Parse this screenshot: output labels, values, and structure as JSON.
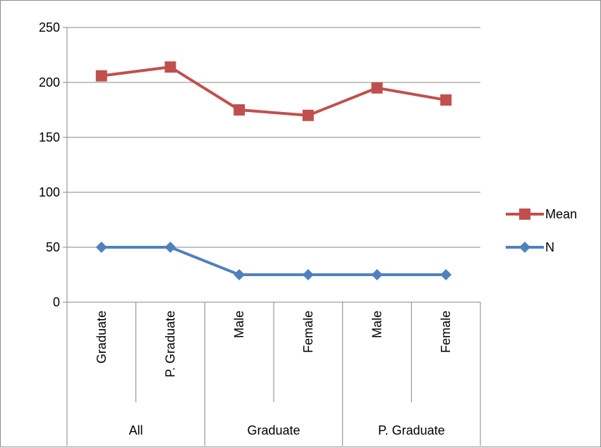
{
  "chart_data": {
    "type": "line",
    "categories": [
      {
        "label": "Graduate",
        "group": "All"
      },
      {
        "label": "P. Graduate",
        "group": "All"
      },
      {
        "label": "Male",
        "group": "Graduate"
      },
      {
        "label": "Female",
        "group": "Graduate"
      },
      {
        "label": "Male",
        "group": "P. Graduate"
      },
      {
        "label": "Female",
        "group": "P. Graduate"
      }
    ],
    "groups": [
      "All",
      "Graduate",
      "P. Graduate"
    ],
    "series": [
      {
        "name": "Mean",
        "color": "#c0504d",
        "marker": "square",
        "values": [
          206,
          214,
          175,
          170,
          195,
          184
        ]
      },
      {
        "name": "N",
        "color": "#4f81bd",
        "marker": "diamond",
        "values": [
          50,
          50,
          25,
          25,
          25,
          25
        ]
      }
    ],
    "ylim": [
      0,
      250
    ],
    "yticks": [
      "0",
      "50",
      "100",
      "150",
      "200",
      "250"
    ],
    "grid": true,
    "legend": "right"
  }
}
